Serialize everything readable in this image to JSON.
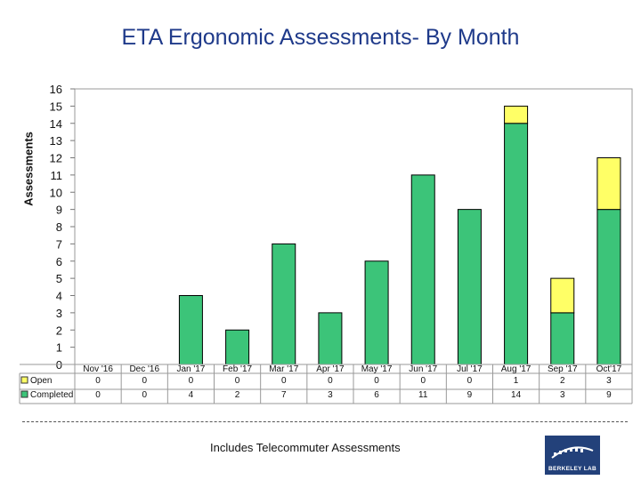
{
  "chart_data": {
    "type": "bar",
    "stacked": true,
    "title": "ETA Ergonomic Assessments- By Month",
    "ylabel": "Assessments",
    "xlabel": "",
    "ylim": [
      0,
      16
    ],
    "yticks": [
      "0",
      "1",
      "2",
      "3",
      "4",
      "5",
      "6",
      "7",
      "8",
      "9",
      "10",
      "11",
      "12",
      "13",
      "14",
      "15",
      "16"
    ],
    "categories": [
      "Nov '16",
      "Dec '16",
      "Jan '17",
      "Feb '17",
      "Mar '17",
      "Apr '17",
      "May '17",
      "Jun '17",
      "Jul '17",
      "Aug '17",
      "Sep '17",
      "Oct'17"
    ],
    "series": [
      {
        "name": "Completed",
        "color": "#3cc479",
        "values": [
          0,
          0,
          4,
          2,
          7,
          3,
          6,
          11,
          9,
          14,
          3,
          9
        ]
      },
      {
        "name": "Open",
        "color": "#ffff66",
        "values": [
          0,
          0,
          0,
          0,
          0,
          0,
          0,
          0,
          0,
          1,
          2,
          3
        ]
      }
    ],
    "table_rows": [
      {
        "label": "Open",
        "color": "#ffff66",
        "values": [
          "0",
          "0",
          "0",
          "0",
          "0",
          "0",
          "0",
          "0",
          "0",
          "1",
          "2",
          "3"
        ]
      },
      {
        "label": "Completed",
        "color": "#3cc479",
        "values": [
          "0",
          "0",
          "4",
          "2",
          "7",
          "3",
          "6",
          "11",
          "9",
          "14",
          "3",
          "9"
        ]
      }
    ]
  },
  "footnote": "Includes Telecommuter Assessments",
  "logo_text": "BERKELEY LAB"
}
